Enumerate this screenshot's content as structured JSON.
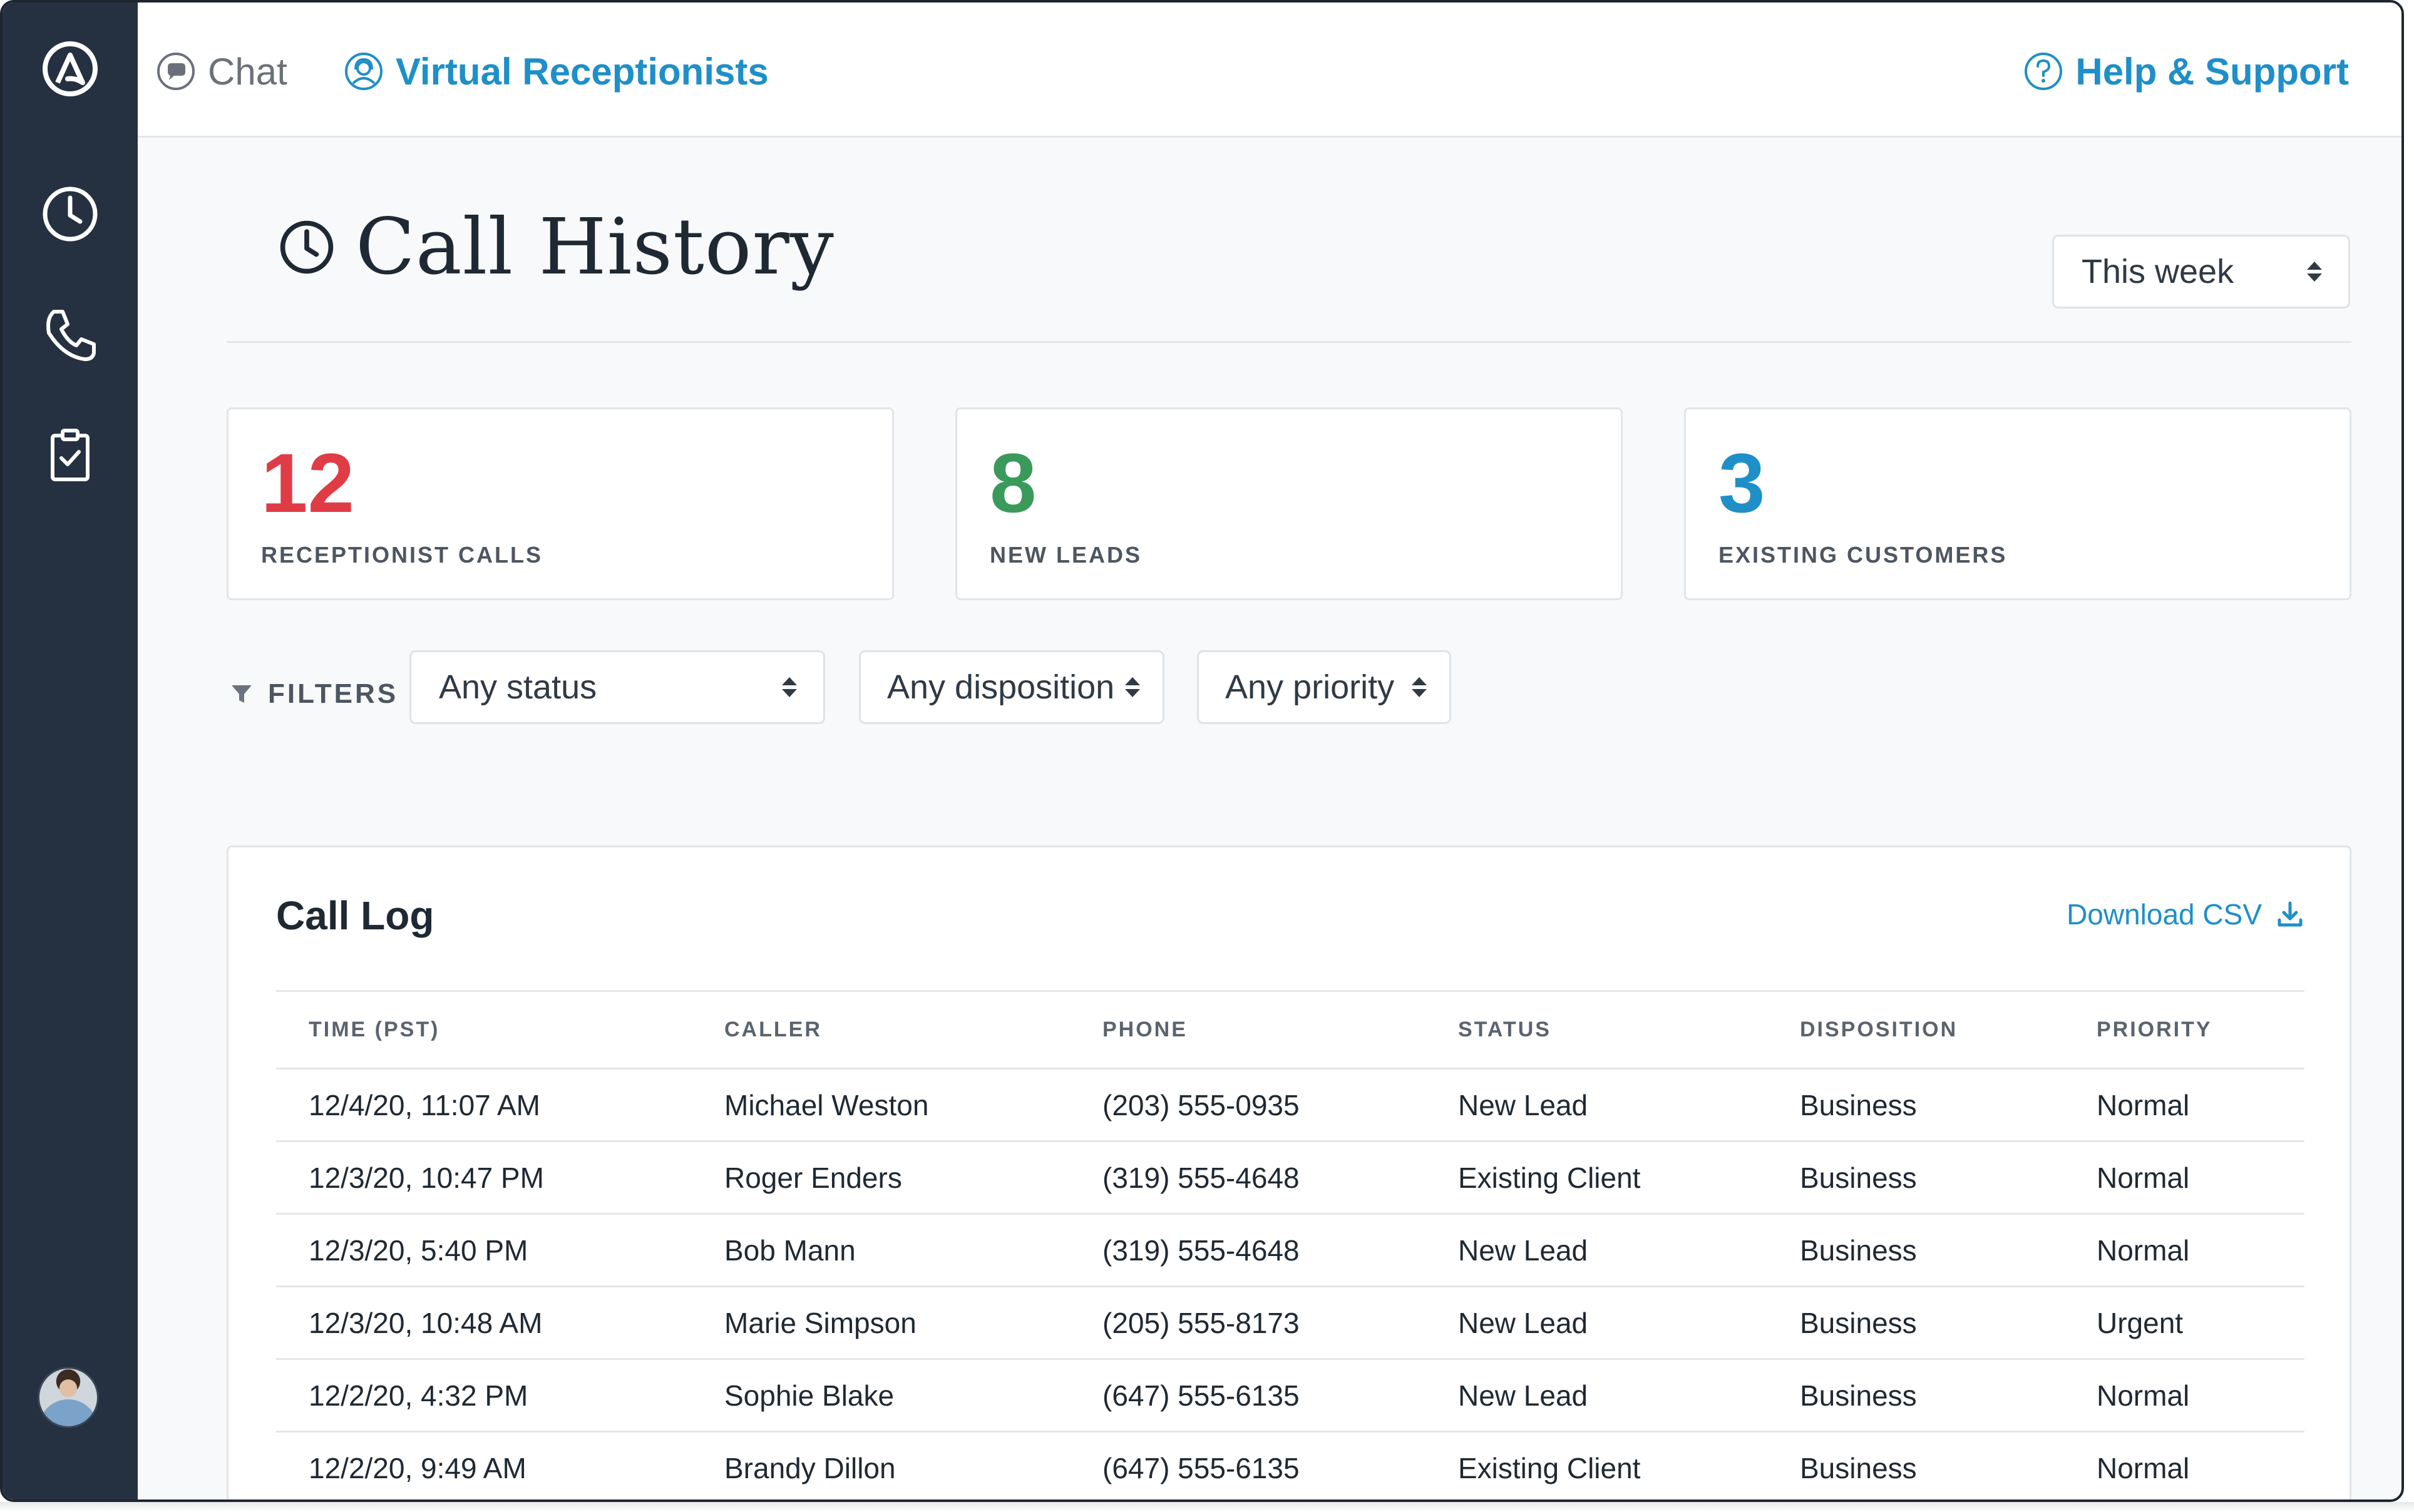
{
  "topbar": {
    "chat_label": "Chat",
    "virtual_receptionists_label": "Virtual Receptionists",
    "help_label": "Help & Support"
  },
  "sidebar": {
    "items": [
      {
        "icon": "logo-icon"
      },
      {
        "icon": "clock-icon"
      },
      {
        "icon": "phone-icon"
      },
      {
        "icon": "clipboard-check-icon"
      }
    ],
    "avatar": "user-avatar"
  },
  "page": {
    "title": "Call History",
    "range_select": "This week"
  },
  "stats": [
    {
      "value": "12",
      "label": "RECEPTIONIST CALLS",
      "color": "#e03c46"
    },
    {
      "value": "8",
      "label": "NEW LEADS",
      "color": "#3a9a5b"
    },
    {
      "value": "3",
      "label": "EXISTING CUSTOMERS",
      "color": "#1f8fc8"
    }
  ],
  "filters": {
    "label": "FILTERS",
    "status": "Any status",
    "disposition": "Any disposition",
    "priority": "Any priority"
  },
  "call_log": {
    "title": "Call Log",
    "download_label": "Download CSV",
    "columns": [
      "TIME (PST)",
      "CALLER",
      "PHONE",
      "STATUS",
      "DISPOSITION",
      "PRIORITY"
    ],
    "rows": [
      [
        "12/4/20, 11:07 AM",
        "Michael Weston",
        "(203) 555-0935",
        "New Lead",
        "Business",
        "Normal"
      ],
      [
        "12/3/20, 10:47 PM",
        "Roger Enders",
        "(319) 555-4648",
        "Existing Client",
        "Business",
        "Normal"
      ],
      [
        "12/3/20, 5:40 PM",
        "Bob Mann",
        "(319) 555-4648",
        "New Lead",
        "Business",
        "Normal"
      ],
      [
        "12/3/20, 10:48 AM",
        "Marie Simpson",
        "(205) 555-8173",
        "New Lead",
        "Business",
        "Urgent"
      ],
      [
        "12/2/20, 4:32 PM",
        "Sophie Blake",
        "(647) 555-6135",
        "New Lead",
        "Business",
        "Normal"
      ],
      [
        "12/2/20, 9:49 AM",
        "Brandy Dillon",
        "(647) 555-6135",
        "Existing Client",
        "Business",
        "Normal"
      ]
    ]
  },
  "colors": {
    "sidebar": "#253140",
    "accent": "#1f8fc8",
    "red": "#e03c46",
    "green": "#3a9a5b"
  }
}
